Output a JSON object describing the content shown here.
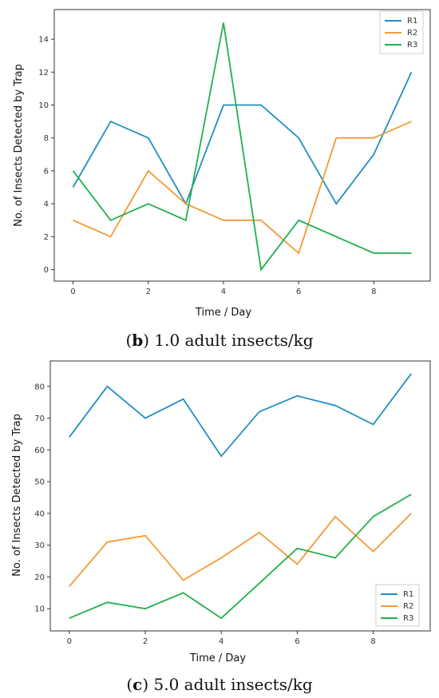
{
  "colors": {
    "R1": "#1f8fc0",
    "R2": "#f39a35",
    "R3": "#1fb14a",
    "frame": "#333333",
    "tick": "#333333"
  },
  "chart_data": [
    {
      "type": "line",
      "title": "",
      "caption_letter": "b",
      "caption_text": ") 1.0 adult insects/kg",
      "xlabel": "Time / Day",
      "ylabel": "No. of Insects Detected by Trap",
      "x": [
        0,
        1,
        2,
        3,
        4,
        5,
        6,
        7,
        8,
        9
      ],
      "series": [
        {
          "name": "R1",
          "values": [
            5,
            9,
            8,
            4,
            10,
            10,
            8,
            4,
            7,
            12
          ]
        },
        {
          "name": "R2",
          "values": [
            3,
            2,
            6,
            4,
            3,
            3,
            1,
            8,
            8,
            9
          ]
        },
        {
          "name": "R3",
          "values": [
            6,
            3,
            4,
            3,
            15,
            0,
            3,
            2,
            1,
            1
          ]
        }
      ],
      "xlim": [
        -0.5,
        9.5
      ],
      "ylim": [
        -0.7,
        15.8
      ],
      "xticks": [
        0,
        2,
        4,
        6,
        8
      ],
      "yticks": [
        0,
        2,
        4,
        6,
        8,
        10,
        12,
        14
      ],
      "grid": false,
      "legend": "top-right"
    },
    {
      "type": "line",
      "title": "",
      "caption_letter": "c",
      "caption_text": ") 5.0 adult insects/kg",
      "xlabel": "Time / Day",
      "ylabel": "No. of Insects Detected by Trap",
      "x": [
        0,
        1,
        2,
        3,
        4,
        5,
        6,
        7,
        8,
        9
      ],
      "series": [
        {
          "name": "R1",
          "values": [
            64,
            80,
            70,
            76,
            58,
            72,
            77,
            74,
            68,
            84
          ]
        },
        {
          "name": "R2",
          "values": [
            17,
            31,
            33,
            19,
            26,
            34,
            24,
            39,
            28,
            40
          ]
        },
        {
          "name": "R3",
          "values": [
            7,
            12,
            10,
            15,
            7,
            18,
            29,
            26,
            39,
            46
          ]
        }
      ],
      "xlim": [
        -0.5,
        9.5
      ],
      "ylim": [
        3,
        88
      ],
      "xticks": [
        0,
        2,
        4,
        6,
        8
      ],
      "yticks": [
        10,
        20,
        30,
        40,
        50,
        60,
        70,
        80
      ],
      "grid": false,
      "legend": "bottom-right"
    }
  ]
}
